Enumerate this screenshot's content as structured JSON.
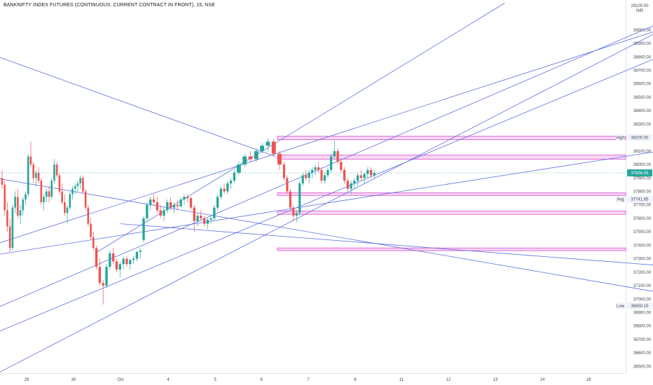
{
  "header": {
    "title": "BANKNIFTY INDEX FUTURES (CONTINUOUS: CURRENT CONTRACT IN FRONT), 15, NSE",
    "currency_top": "29100.00",
    "currency": "INR"
  },
  "chart_data": {
    "type": "candlestick",
    "title": "BANKNIFTY INDEX FUTURES (CONTINUOUS: CURRENT CONTRACT IN FRONT), 15, NSE",
    "ylim": [
      36450,
      39150
    ],
    "y_ticks": [
      36500,
      36600,
      36700,
      36800,
      36900,
      37000,
      37100,
      37200,
      37300,
      37400,
      37500,
      37600,
      37700,
      37800,
      37900,
      38000,
      38100,
      38200,
      38300,
      38400,
      38500,
      38600,
      38700,
      38800,
      38900,
      39000
    ],
    "y_tick_labels": [
      "36500.00",
      "36600.00",
      "36700.00",
      "36800.00",
      "36900.00",
      "37000.00",
      "37100.00",
      "37200.00",
      "37300.00",
      "37400.00",
      "37500.00",
      "37600.00",
      "37700.00",
      "37800.00",
      "37900.00",
      "38000.00",
      "38100.00",
      "38200.00",
      "38300.00",
      "38400.00",
      "38500.00",
      "38600.00",
      "38700.00",
      "38800.00",
      "38900.00",
      "39000.00"
    ],
    "x_ticks": [
      {
        "label": "29",
        "session": 0
      },
      {
        "label": "30",
        "session": 1
      },
      {
        "label": "Oct",
        "session": 2
      },
      {
        "label": "4",
        "session": 3
      },
      {
        "label": "5",
        "session": 4
      },
      {
        "label": "6",
        "session": 5
      },
      {
        "label": "7",
        "session": 6
      },
      {
        "label": "8",
        "session": 7
      },
      {
        "label": "11",
        "session": 8
      },
      {
        "label": "12",
        "session": 9
      },
      {
        "label": "13",
        "session": 10
      },
      {
        "label": "14",
        "session": 11
      },
      {
        "label": "18",
        "session": 12
      }
    ],
    "session_closes": [
      {
        "session": 0,
        "ohlc": [
          [
            37900,
            37960,
            37820,
            37850
          ],
          [
            37850,
            37880,
            37620,
            37660
          ],
          [
            37660,
            37720,
            37500,
            37540
          ],
          [
            37540,
            37600,
            37350,
            37380
          ],
          [
            37380,
            37700,
            37360,
            37680
          ],
          [
            37680,
            37800,
            37640,
            37760
          ],
          [
            37760,
            37820,
            37600,
            37620
          ],
          [
            37620,
            37700,
            37560,
            37660
          ],
          [
            37660,
            37760,
            37620,
            37740
          ],
          [
            37740,
            37800,
            37700,
            37780
          ],
          [
            37780,
            38080,
            37760,
            38060
          ],
          [
            38060,
            38170,
            37980,
            38000
          ],
          [
            38000,
            38020,
            37860,
            37900
          ],
          [
            37900,
            37960,
            37840,
            37940
          ],
          [
            37940,
            37980,
            37860,
            37880
          ],
          [
            37880,
            37900,
            37700,
            37720
          ],
          [
            37720,
            37780,
            37660,
            37760
          ],
          [
            37760,
            37820,
            37720,
            37800
          ]
        ]
      },
      {
        "session": 1,
        "ohlc": [
          [
            37800,
            37840,
            37720,
            37760
          ],
          [
            37760,
            37900,
            37740,
            37880
          ],
          [
            37880,
            38040,
            37860,
            38000
          ],
          [
            38000,
            38020,
            37900,
            37920
          ],
          [
            37920,
            37940,
            37780,
            37800
          ],
          [
            37800,
            37860,
            37700,
            37720
          ],
          [
            37720,
            37780,
            37620,
            37640
          ],
          [
            37640,
            37700,
            37560,
            37680
          ],
          [
            37680,
            37800,
            37660,
            37780
          ],
          [
            37780,
            37840,
            37740,
            37820
          ],
          [
            37820,
            37860,
            37780,
            37840
          ],
          [
            37840,
            37880,
            37800,
            37860
          ],
          [
            37860,
            37920,
            37820,
            37900
          ],
          [
            37900,
            37920,
            37780,
            37800
          ],
          [
            37800,
            37820,
            37660,
            37680
          ],
          [
            37680,
            37700,
            37540,
            37560
          ],
          [
            37560,
            37600,
            37440,
            37460
          ],
          [
            37460,
            37500,
            37360,
            37380
          ]
        ]
      },
      {
        "session": 2,
        "ohlc": [
          [
            37380,
            37400,
            37220,
            37240
          ],
          [
            37240,
            37300,
            37100,
            37120
          ],
          [
            37120,
            37140,
            36960,
            37100
          ],
          [
            37100,
            37260,
            37080,
            37240
          ],
          [
            37240,
            37360,
            37220,
            37340
          ],
          [
            37340,
            37380,
            37260,
            37280
          ],
          [
            37280,
            37300,
            37200,
            37220
          ],
          [
            37220,
            37280,
            37160,
            37260
          ],
          [
            37260,
            37320,
            37220,
            37300
          ],
          [
            37300,
            37320,
            37240,
            37260
          ],
          [
            37260,
            37300,
            37220,
            37290
          ],
          [
            37290,
            37320,
            37260,
            37300
          ],
          [
            37300,
            37360,
            37280,
            37350
          ],
          [
            37350,
            37380,
            37300,
            37360
          ]
        ]
      },
      {
        "session": 3,
        "ohlc": [
          [
            37440,
            37620,
            37420,
            37600
          ],
          [
            37600,
            37720,
            37580,
            37700
          ],
          [
            37700,
            37760,
            37660,
            37740
          ],
          [
            37740,
            37780,
            37700,
            37720
          ],
          [
            37720,
            37760,
            37640,
            37660
          ],
          [
            37660,
            37700,
            37600,
            37620
          ],
          [
            37620,
            37680,
            37580,
            37660
          ],
          [
            37660,
            37740,
            37640,
            37720
          ],
          [
            37720,
            37760,
            37660,
            37680
          ],
          [
            37680,
            37720,
            37640,
            37700
          ],
          [
            37700,
            37740,
            37660,
            37690
          ],
          [
            37690,
            37760,
            37680,
            37740
          ],
          [
            37740,
            37780,
            37700,
            37760
          ],
          [
            37760,
            37780,
            37720,
            37750
          ]
        ]
      },
      {
        "session": 4,
        "ohlc": [
          [
            37750,
            37760,
            37660,
            37680
          ],
          [
            37680,
            37700,
            37500,
            37580
          ],
          [
            37580,
            37640,
            37540,
            37620
          ],
          [
            37620,
            37660,
            37580,
            37600
          ],
          [
            37600,
            37620,
            37540,
            37560
          ],
          [
            37560,
            37600,
            37520,
            37590
          ],
          [
            37590,
            37620,
            37560,
            37600
          ],
          [
            37600,
            37700,
            37580,
            37680
          ],
          [
            37680,
            37780,
            37660,
            37760
          ],
          [
            37760,
            37840,
            37740,
            37820
          ],
          [
            37820,
            37860,
            37780,
            37800
          ],
          [
            37800,
            37880,
            37780,
            37860
          ],
          [
            37860,
            37900,
            37820,
            37880
          ],
          [
            37880,
            37960,
            37860,
            37940
          ]
        ]
      },
      {
        "session": 5,
        "ohlc": [
          [
            37940,
            38020,
            37920,
            38000
          ],
          [
            38000,
            38080,
            37980,
            38060
          ],
          [
            38060,
            38100,
            38020,
            38040
          ],
          [
            38040,
            38120,
            38020,
            38100
          ],
          [
            38100,
            38160,
            38080,
            38140
          ],
          [
            38140,
            38190,
            38100,
            38170
          ],
          [
            38170,
            38190,
            38060,
            38080
          ],
          [
            38080,
            38100,
            37960,
            38000
          ]
        ]
      },
      {
        "session": 6,
        "ohlc": [
          [
            38000,
            38020,
            37880,
            37900
          ],
          [
            37900,
            37920,
            37780,
            37800
          ],
          [
            37800,
            37820,
            37660,
            37680
          ],
          [
            37680,
            37700,
            37580,
            37620
          ],
          [
            37620,
            37660,
            37570,
            37640
          ],
          [
            37640,
            37880,
            37620,
            37860
          ],
          [
            37860,
            37940,
            37840,
            37920
          ],
          [
            37920,
            37960,
            37880,
            37900
          ],
          [
            37900,
            37960,
            37860,
            37940
          ],
          [
            37940,
            37980,
            37900,
            37960
          ],
          [
            37960,
            38000,
            37920,
            37980
          ],
          [
            37980,
            38020,
            37940,
            37960
          ],
          [
            37960,
            37980,
            37860,
            37880
          ],
          [
            37880,
            37940,
            37860,
            37920
          ],
          [
            37920,
            37980,
            37900,
            37960
          ]
        ]
      },
      {
        "session": 7,
        "ohlc": [
          [
            37960,
            38080,
            37940,
            38060
          ],
          [
            38060,
            38180,
            38040,
            38100
          ],
          [
            38100,
            38120,
            38000,
            38020
          ],
          [
            38020,
            38040,
            37940,
            37960
          ],
          [
            37960,
            37980,
            37860,
            37880
          ],
          [
            37880,
            37900,
            37800,
            37820
          ],
          [
            37820,
            37880,
            37780,
            37860
          ],
          [
            37860,
            37900,
            37820,
            37880
          ],
          [
            37880,
            37940,
            37840,
            37920
          ],
          [
            37920,
            37960,
            37880,
            37900
          ],
          [
            37900,
            37940,
            37860,
            37930
          ],
          [
            37930,
            37980,
            37900,
            37960
          ],
          [
            37960,
            37980,
            37900,
            37920
          ],
          [
            37920,
            37960,
            37900,
            37938
          ]
        ]
      }
    ],
    "horizontal_zones": [
      {
        "from": 38185,
        "to": 38210
      },
      {
        "from": 38040,
        "to": 38070
      },
      {
        "from": 37770,
        "to": 37790
      },
      {
        "from": 37630,
        "to": 37655
      },
      {
        "from": 37360,
        "to": 37380
      }
    ],
    "trendlines": [
      {
        "from": [
          -1,
          38850
        ],
        "to": [
          5.3,
          38060
        ]
      },
      {
        "from": [
          -1,
          37920
        ],
        "to": [
          13.5,
          37050
        ]
      },
      {
        "from": [
          -1,
          37310
        ],
        "to": [
          13.5,
          38100
        ]
      },
      {
        "from": [
          -1,
          36880
        ],
        "to": [
          13.5,
          39050
        ]
      },
      {
        "from": [
          -1,
          36700
        ],
        "to": [
          13.5,
          38800
        ]
      },
      {
        "from": [
          -1,
          36380
        ],
        "to": [
          13.5,
          38990
        ]
      },
      {
        "from": [
          -1,
          37370
        ],
        "to": [
          13.5,
          39000
        ]
      },
      {
        "from": [
          1.5,
          37350
        ],
        "to": [
          10.2,
          39200
        ]
      },
      {
        "from": [
          2,
          37560
        ],
        "to": [
          13.5,
          37250
        ]
      }
    ],
    "current_price": 37938.05,
    "current_price_label": "37938.05",
    "markers": [
      {
        "side_label": "High",
        "value": 38200,
        "value_label": "38200.00"
      },
      {
        "side_label": "Avg",
        "value": 37741.65,
        "value_label": "37741.65"
      },
      {
        "side_label": "Low",
        "value": 36950.15,
        "value_label": "36950.15"
      }
    ],
    "colors": {
      "up": "#26a69a",
      "down": "#ef5350",
      "trendline": "#5b6ee1",
      "zone_fill": "#f8d7f3",
      "zone_border": "#d64fd0",
      "current_price": "#26a69a",
      "grid": "#f0f3fa"
    }
  }
}
